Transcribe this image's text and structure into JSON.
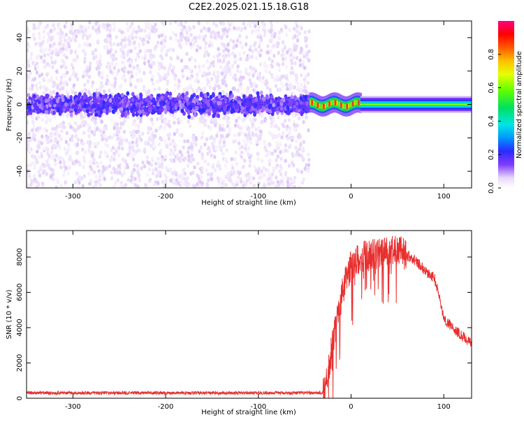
{
  "title": "C2E2.2025.021.15.18.G18",
  "colors": {
    "snr_line": "#e83030",
    "spectrum_core": "#6a00ff",
    "spectrum_halo": "#c9a6f5",
    "background": "#ffffff",
    "axis": "#000000"
  },
  "chart_data": [
    {
      "type": "heatmap",
      "xlabel": "Height of straight line (km)",
      "ylabel": "Frequency (Hz)",
      "xlim": [
        -350,
        130
      ],
      "ylim": [
        -50,
        50
      ],
      "xticks": [
        -300,
        -200,
        -100,
        0,
        100
      ],
      "yticks": [
        -40,
        -20,
        0,
        20,
        40
      ],
      "grid": false,
      "colorbar": {
        "label": "Normalized spectral amplitude",
        "range": [
          0.0,
          1.0
        ],
        "ticks": [
          0.0,
          0.2,
          0.4,
          0.6,
          0.8
        ]
      },
      "regions": [
        {
          "x_range": [
            -350,
            -45
          ],
          "description_values": {
            "core_freq_halfwidth_hz": 8,
            "core_amplitude": 0.15,
            "scatter_freq_halfwidth_hz": 50,
            "scatter_amplitude": 0.05
          }
        },
        {
          "x_range": [
            -45,
            10
          ],
          "description_values": {
            "core_freq_halfwidth_hz": 3,
            "core_amplitude": 0.85
          }
        },
        {
          "x_range": [
            10,
            130
          ],
          "description_values": {
            "core_freq_halfwidth_hz": 2,
            "core_amplitude": 0.45
          }
        }
      ]
    },
    {
      "type": "line",
      "xlabel": "Height of straight line (km)",
      "ylabel": "SNR (10 * v/v)",
      "xlim": [
        -350,
        130
      ],
      "ylim": [
        0,
        9500
      ],
      "xticks": [
        -300,
        -200,
        -100,
        0,
        100
      ],
      "yticks": [
        0,
        2000,
        4000,
        6000,
        8000
      ],
      "grid": false,
      "series": [
        {
          "x": [
            -350,
            -300,
            -200,
            -100,
            -50,
            -30,
            -25,
            -20,
            -15,
            -10,
            -5,
            0,
            10,
            20,
            30,
            40,
            50,
            60,
            70,
            80,
            90,
            95,
            100,
            110,
            120,
            130
          ],
          "values": [
            300,
            300,
            300,
            300,
            300,
            300,
            1500,
            3000,
            4500,
            5800,
            6800,
            7500,
            8000,
            8100,
            8200,
            8300,
            8400,
            8100,
            7800,
            7200,
            6800,
            5800,
            4500,
            4000,
            3500,
            3100
          ]
        }
      ]
    }
  ]
}
